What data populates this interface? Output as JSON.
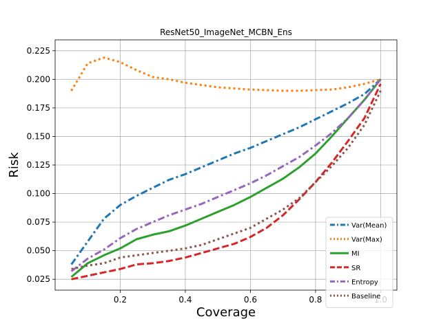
{
  "chart_data": {
    "type": "line",
    "title": "ResNet50_ImageNet_MCBN_Ens",
    "xlabel": "Coverage",
    "ylabel": "Risk",
    "xlim": [
      0.0,
      1.05
    ],
    "ylim": [
      0.0155,
      0.2345
    ],
    "xticks": [
      0.2,
      0.4,
      0.6,
      0.8,
      1.0
    ],
    "xtick_labels": [
      "0.2",
      "0.4",
      "0.6",
      "0.8",
      "1.0"
    ],
    "yticks": [
      0.025,
      0.05,
      0.075,
      0.1,
      0.125,
      0.15,
      0.175,
      0.2,
      0.225
    ],
    "ytick_labels": [
      "0.025",
      "0.050",
      "0.075",
      "0.100",
      "0.125",
      "0.150",
      "0.175",
      "0.200",
      "0.225"
    ],
    "grid": true,
    "legend_position": "lower-right",
    "x": [
      0.05,
      0.1,
      0.15,
      0.2,
      0.25,
      0.3,
      0.35,
      0.4,
      0.45,
      0.5,
      0.55,
      0.6,
      0.65,
      0.7,
      0.75,
      0.8,
      0.85,
      0.9,
      0.95,
      1.0
    ],
    "series": [
      {
        "name": "Var(Mean)",
        "color": "#1f77b4",
        "dash": "dashdot",
        "values": [
          0.038,
          0.058,
          0.078,
          0.09,
          0.098,
          0.105,
          0.112,
          0.117,
          0.123,
          0.129,
          0.135,
          0.14,
          0.146,
          0.152,
          0.158,
          0.165,
          0.172,
          0.179,
          0.187,
          0.2
        ]
      },
      {
        "name": "Var(Max)",
        "color": "#ff7f0e",
        "dash": "dotted",
        "values": [
          0.19,
          0.214,
          0.219,
          0.215,
          0.208,
          0.202,
          0.2,
          0.197,
          0.195,
          0.193,
          0.192,
          0.191,
          0.1905,
          0.19,
          0.19,
          0.1905,
          0.191,
          0.193,
          0.196,
          0.2
        ]
      },
      {
        "name": "MI",
        "color": "#2ca02c",
        "dash": "solid",
        "values": [
          0.027,
          0.039,
          0.046,
          0.052,
          0.06,
          0.064,
          0.067,
          0.072,
          0.078,
          0.084,
          0.09,
          0.097,
          0.105,
          0.113,
          0.123,
          0.135,
          0.15,
          0.166,
          0.182,
          0.2
        ]
      },
      {
        "name": "SR",
        "color": "#d62728",
        "dash": "dashed",
        "values": [
          0.025,
          0.028,
          0.031,
          0.034,
          0.038,
          0.039,
          0.041,
          0.044,
          0.048,
          0.052,
          0.056,
          0.062,
          0.07,
          0.081,
          0.095,
          0.11,
          0.127,
          0.146,
          0.166,
          0.196
        ]
      },
      {
        "name": "Entropy",
        "color": "#9467bd",
        "dash": "dashdot",
        "values": [
          0.032,
          0.043,
          0.051,
          0.061,
          0.069,
          0.075,
          0.081,
          0.086,
          0.091,
          0.097,
          0.103,
          0.109,
          0.116,
          0.124,
          0.132,
          0.142,
          0.153,
          0.166,
          0.182,
          0.2
        ]
      },
      {
        "name": "Baseline",
        "color": "#8c564b",
        "dash": "dotted",
        "values": [
          0.034,
          0.037,
          0.039,
          0.044,
          0.046,
          0.048,
          0.05,
          0.052,
          0.055,
          0.06,
          0.065,
          0.07,
          0.078,
          0.086,
          0.096,
          0.11,
          0.124,
          0.14,
          0.16,
          0.19
        ]
      }
    ]
  }
}
